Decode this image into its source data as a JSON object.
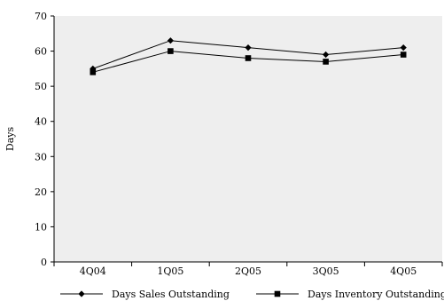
{
  "chart_data": {
    "type": "line",
    "categories": [
      "4Q04",
      "1Q05",
      "2Q05",
      "3Q05",
      "4Q05"
    ],
    "series": [
      {
        "name": "Days Sales Outstanding",
        "values": [
          55,
          63,
          61,
          59,
          61
        ],
        "marker": "diamond"
      },
      {
        "name": "Days Inventory Outstanding",
        "values": [
          54,
          60,
          58,
          57,
          59
        ],
        "marker": "square"
      }
    ],
    "ylabel": "Days",
    "xlabel": "",
    "ylim": [
      0,
      70
    ],
    "yticks": [
      0,
      10,
      20,
      30,
      40,
      50,
      60,
      70
    ],
    "grid": false,
    "plot_background": "#eeeeee",
    "line_color": "#000000",
    "legend_position": "bottom"
  }
}
